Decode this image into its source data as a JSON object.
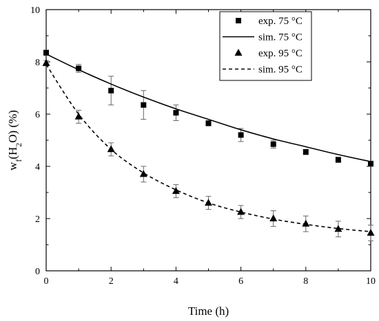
{
  "chart_data": {
    "type": "line",
    "xlabel": "Time (h)",
    "ylabel": {
      "base": "w",
      "sub1": "f",
      "open": "(H",
      "sub2": "2",
      "close": "O) (%)"
    },
    "xlim": [
      0,
      10
    ],
    "ylim": [
      0,
      10
    ],
    "xticks": [
      "0",
      "2",
      "4",
      "6",
      "8",
      "10"
    ],
    "yticks": [
      "0",
      "2",
      "4",
      "6",
      "8",
      "10"
    ],
    "grid": false,
    "legend_position": "top-right",
    "series": [
      {
        "name": "exp. 75 °C",
        "kind": "scatter",
        "marker": "square",
        "x": [
          0,
          1,
          2,
          3,
          4,
          5,
          6,
          7,
          8,
          9,
          10
        ],
        "y": [
          8.35,
          7.75,
          6.9,
          6.35,
          6.05,
          5.65,
          5.2,
          4.85,
          4.55,
          4.25,
          4.1
        ],
        "err": [
          0.1,
          0.15,
          0.55,
          0.55,
          0.3,
          0.1,
          0.25,
          0.15,
          0.1,
          0.1,
          0.1
        ]
      },
      {
        "name": "sim. 75 °C",
        "kind": "line",
        "dash": "solid",
        "x": [
          0,
          1,
          2,
          3,
          4,
          5,
          6,
          7,
          8,
          9,
          10
        ],
        "y": [
          8.3,
          7.7,
          7.15,
          6.65,
          6.2,
          5.8,
          5.4,
          5.05,
          4.75,
          4.45,
          4.18
        ]
      },
      {
        "name": "exp. 95 °C",
        "kind": "scatter",
        "marker": "triangle",
        "x": [
          0,
          1,
          2,
          3,
          4,
          5,
          6,
          7,
          8,
          9,
          10
        ],
        "y": [
          7.95,
          5.9,
          4.65,
          3.7,
          3.05,
          2.6,
          2.25,
          2.0,
          1.8,
          1.6,
          1.45
        ],
        "err": [
          0.1,
          0.25,
          0.25,
          0.3,
          0.25,
          0.25,
          0.25,
          0.3,
          0.3,
          0.3,
          0.3
        ]
      },
      {
        "name": "sim. 95 °C",
        "kind": "line",
        "dash": "dashed",
        "x": [
          0,
          1,
          2,
          3,
          4,
          5,
          6,
          7,
          8,
          9,
          10
        ],
        "y": [
          7.9,
          6.0,
          4.65,
          3.75,
          3.1,
          2.6,
          2.25,
          1.98,
          1.78,
          1.62,
          1.5
        ]
      }
    ],
    "colors": {
      "ink": "#000000",
      "errorbar": "#666666",
      "background": "#ffffff"
    }
  }
}
